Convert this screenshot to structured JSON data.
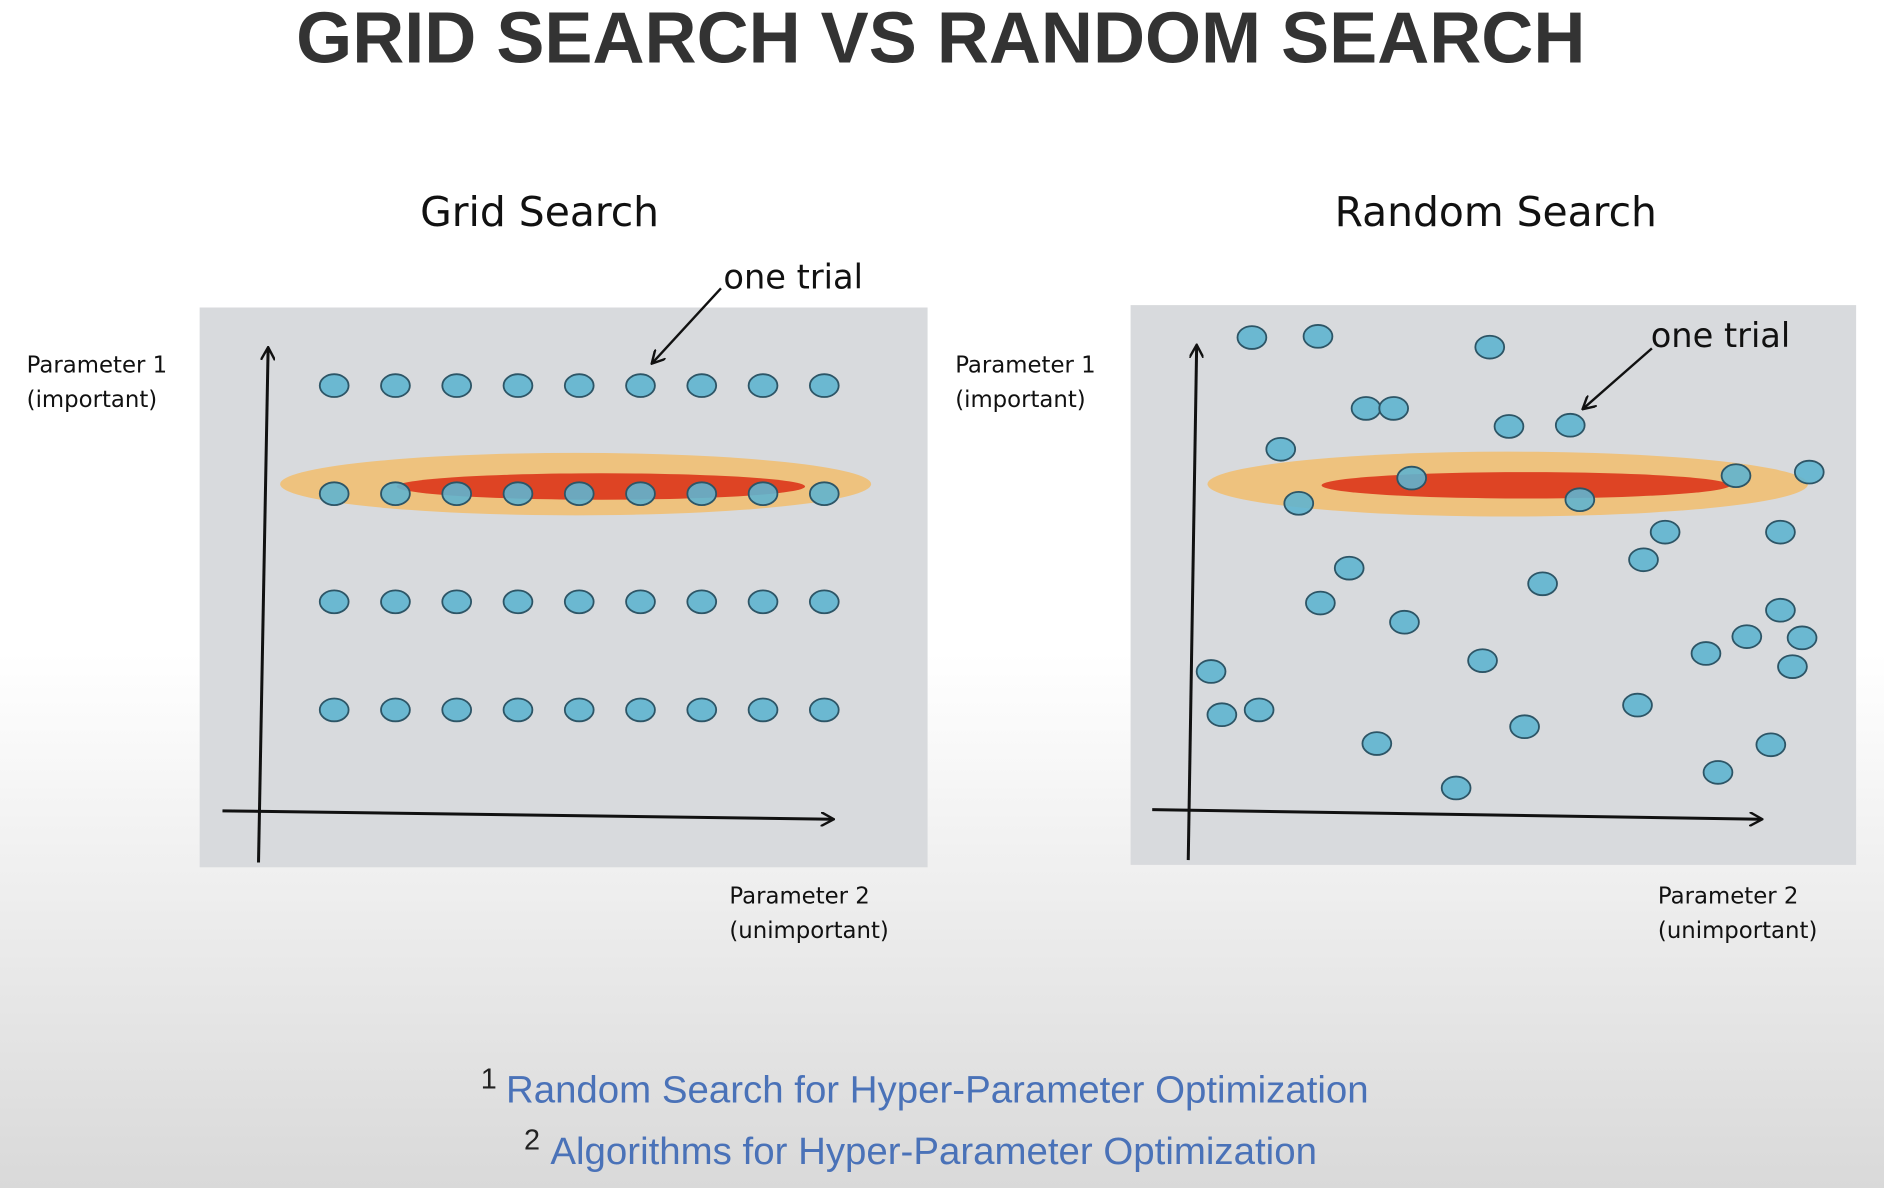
{
  "title": "GRID SEARCH VS RANDOM SEARCH",
  "panels": [
    {
      "title": "Grid Search",
      "y_label": [
        "Parameter 1",
        "(important)"
      ],
      "x_label": [
        "Parameter 2",
        "(unimportant)"
      ],
      "annotation": "one trial"
    },
    {
      "title": "Random Search",
      "y_label": [
        "Parameter 1",
        "(important)"
      ],
      "x_label": [
        "Parameter 2",
        "(unimportant)"
      ],
      "annotation": "one trial"
    }
  ],
  "references": [
    {
      "number": "1",
      "text": "Random Search for Hyper-Parameter Optimization"
    },
    {
      "number": "2",
      "text": "Algorithms for Hyper-Parameter Optimization"
    }
  ]
}
